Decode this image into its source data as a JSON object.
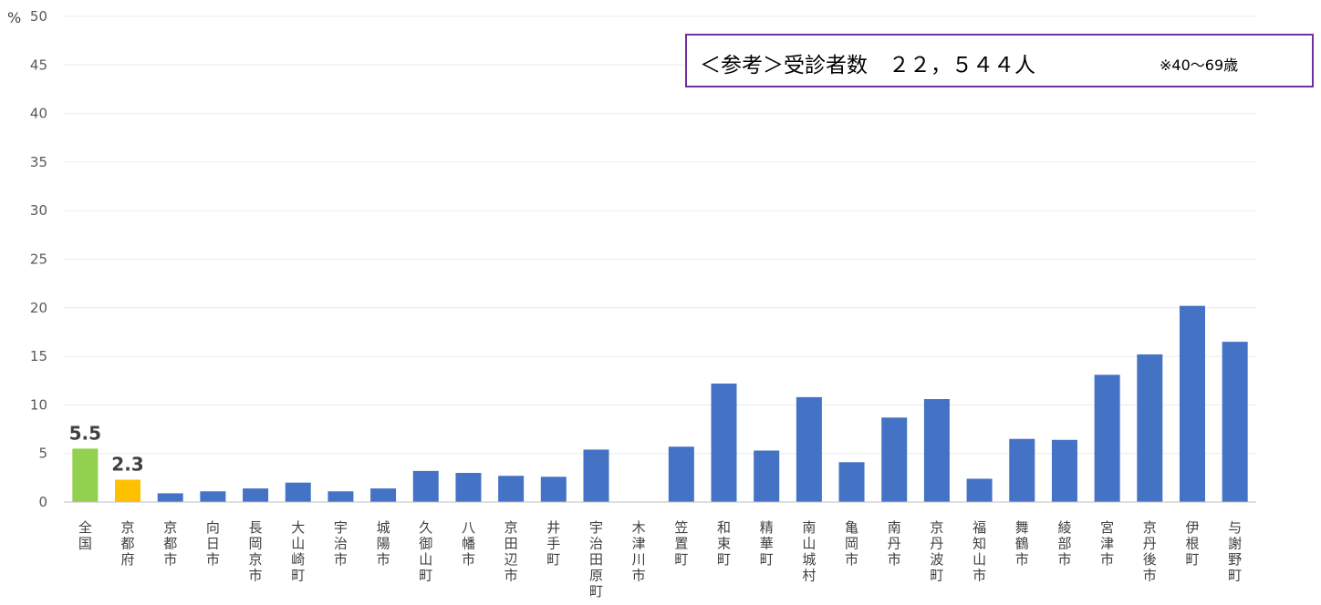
{
  "chart_data": {
    "type": "bar",
    "unit": "%",
    "ylim": [
      0,
      50
    ],
    "yticks": [
      0,
      5,
      10,
      15,
      20,
      25,
      30,
      35,
      40,
      45,
      50
    ],
    "grid": true,
    "categories": [
      "全国",
      "京都府",
      "京都市",
      "向日市",
      "長岡京市",
      "大山崎町",
      "宇治市",
      "城陽市",
      "久御山町",
      "八幡市",
      "京田辺市",
      "井手町",
      "宇治田原町",
      "木津川市",
      "笠置町",
      "和束町",
      "精華町",
      "南山城村",
      "亀岡市",
      "南丹市",
      "京丹波町",
      "福知山市",
      "舞鶴市",
      "綾部市",
      "宮津市",
      "京丹後市",
      "伊根町",
      "与謝野町"
    ],
    "values": [
      5.5,
      2.3,
      0.9,
      1.1,
      1.4,
      2.0,
      1.1,
      1.4,
      3.2,
      3.0,
      2.7,
      2.6,
      5.4,
      0,
      5.7,
      12.2,
      5.3,
      10.8,
      4.1,
      8.7,
      10.6,
      2.4,
      6.5,
      6.4,
      13.1,
      15.2,
      20.2,
      16.5
    ],
    "data_labels": {
      "0": "5.5",
      "1": "2.3"
    },
    "colors": {
      "national": "#92d050",
      "prefecture": "#ffc000",
      "municipality": "#4472c4",
      "grid": "#ebebeb",
      "axis": "#bfbfbf"
    }
  },
  "note": {
    "main": "＜参考＞受診者数　２２，５４４人",
    "sub": "※40～69歳",
    "border_color": "#7030a0"
  }
}
